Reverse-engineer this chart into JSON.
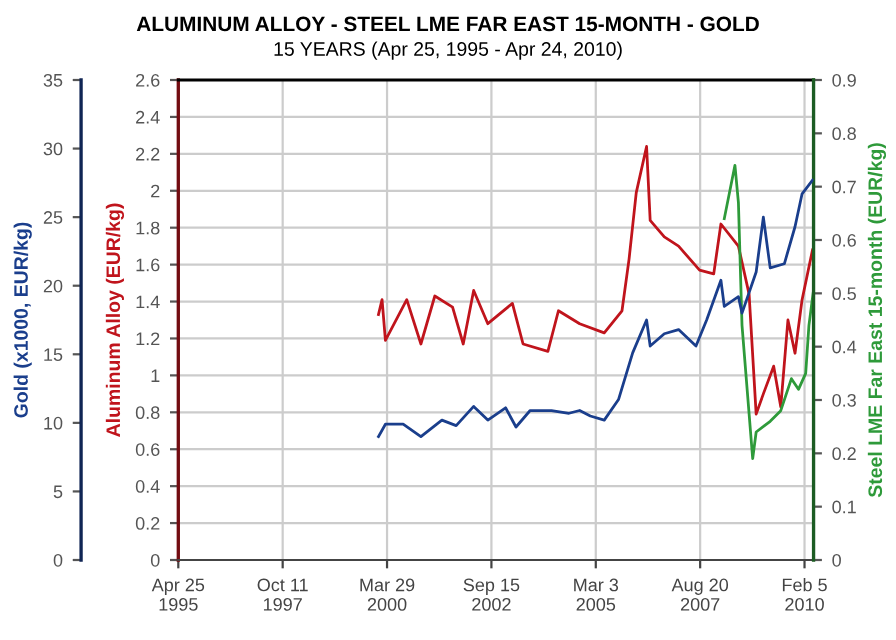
{
  "chart_data": {
    "type": "line",
    "title": "ALUMINUM ALLOY - STEEL LME FAR EAST 15-MONTH - GOLD",
    "subtitle": "15 YEARS (Apr 25, 1995 - Apr 24, 2010)",
    "ylabel": "Aluminum Alloy (EUR/kg)",
    "y2label": "Steel LME Far East 15-month (EUR/kg)",
    "y3label": "Gold (x1000, EUR/kg)",
    "xlim": [
      "1995-04-25",
      "2010-04-24"
    ],
    "xticks": [
      {
        "value": "1995-04-25",
        "label": "Apr 25\n1995"
      },
      {
        "value": "1997-10-11",
        "label": "Oct 11\n1997"
      },
      {
        "value": "2000-03-29",
        "label": "Mar 29\n2000"
      },
      {
        "value": "2002-09-15",
        "label": "Sep 15\n2002"
      },
      {
        "value": "2005-03-03",
        "label": "Mar 3\n2005"
      },
      {
        "value": "2007-08-20",
        "label": "Aug 20\n2007"
      },
      {
        "value": "2010-02-05",
        "label": "Feb 5\n2010"
      }
    ],
    "ylim": [
      0,
      2.6
    ],
    "yticks": [
      0,
      0.2,
      0.4,
      0.6,
      0.8,
      1,
      1.2,
      1.4,
      1.6,
      1.8,
      2,
      2.2,
      2.4,
      2.6
    ],
    "y2lim": [
      0,
      0.9
    ],
    "y2ticks": [
      0,
      0.1,
      0.2,
      0.3,
      0.4,
      0.5,
      0.6,
      0.7,
      0.8,
      0.9
    ],
    "y3lim": [
      0,
      35
    ],
    "y3ticks": [
      0,
      5,
      10,
      15,
      20,
      25,
      30,
      35
    ],
    "grid": true,
    "series": [
      {
        "axis": "y",
        "color": "#c0141c",
        "x": [
          "2000-01",
          "2000-02",
          "2000-03",
          "2000-09",
          "2001-01",
          "2001-05",
          "2001-10",
          "2002-01",
          "2002-04",
          "2002-08",
          "2003-03",
          "2003-06",
          "2004-01",
          "2004-04",
          "2004-10",
          "2005-05",
          "2005-10",
          "2005-12",
          "2006-02",
          "2006-05",
          "2006-06",
          "2006-10",
          "2007-02",
          "2007-08",
          "2007-12",
          "2008-02",
          "2008-07",
          "2008-10",
          "2008-12",
          "2009-02",
          "2009-05",
          "2009-07",
          "2009-09",
          "2009-11",
          "2010-01",
          "2010-04"
        ],
        "values": [
          1.33,
          1.41,
          1.19,
          1.41,
          1.17,
          1.43,
          1.37,
          1.17,
          1.46,
          1.28,
          1.39,
          1.17,
          1.13,
          1.35,
          1.28,
          1.23,
          1.35,
          1.63,
          1.99,
          2.24,
          1.84,
          1.75,
          1.7,
          1.57,
          1.55,
          1.82,
          1.7,
          1.44,
          0.79,
          0.9,
          1.05,
          0.83,
          1.3,
          1.12,
          1.41,
          1.68
        ]
      },
      {
        "axis": "y2",
        "color": "#2e9a3a",
        "x": [
          "2008-03",
          "2008-06",
          "2008-07",
          "2008-08",
          "2008-11",
          "2008-12",
          "2009-04",
          "2009-07",
          "2009-10",
          "2009-12",
          "2010-02",
          "2010-03",
          "2010-04-20"
        ],
        "values": [
          0.64,
          0.74,
          0.67,
          0.44,
          0.19,
          0.24,
          0.26,
          0.28,
          0.34,
          0.32,
          0.35,
          0.44,
          0.5
        ]
      },
      {
        "axis": "y3",
        "color": "#1a3e8c",
        "x": [
          "2000-01",
          "2000-03",
          "2000-08",
          "2001-01",
          "2001-07",
          "2001-11",
          "2002-04",
          "2002-08",
          "2003-01",
          "2003-04",
          "2003-08",
          "2004-02",
          "2004-07",
          "2004-10",
          "2005-01",
          "2005-05",
          "2005-09",
          "2006-01",
          "2006-05",
          "2006-06",
          "2006-10",
          "2007-02",
          "2007-07",
          "2007-10",
          "2008-02",
          "2008-03",
          "2008-07",
          "2008-08",
          "2008-12",
          "2009-02",
          "2009-04",
          "2009-08",
          "2009-11",
          "2010-01",
          "2010-04"
        ],
        "values": [
          9.0,
          9.9,
          9.9,
          9.0,
          10.2,
          9.8,
          11.2,
          10.2,
          11.1,
          9.7,
          10.9,
          10.9,
          10.7,
          10.9,
          10.5,
          10.2,
          11.7,
          15.1,
          17.5,
          15.6,
          16.5,
          16.8,
          15.6,
          17.5,
          20.4,
          18.5,
          19.2,
          18.0,
          21.0,
          25.0,
          21.3,
          21.6,
          24.3,
          26.7,
          27.7
        ]
      }
    ]
  }
}
